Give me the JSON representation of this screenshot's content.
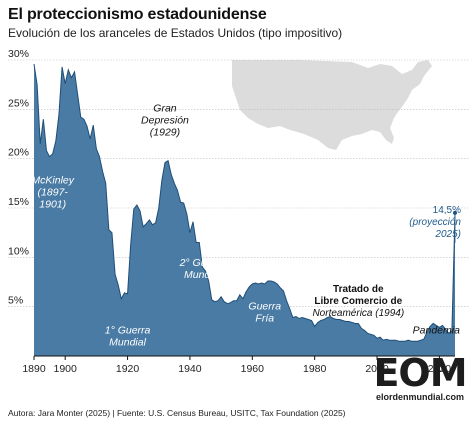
{
  "header": {
    "title": "El proteccionismo estadounidense",
    "subtitle": "Evolución de los aranceles de Estados Unidos (tipo impositivo)"
  },
  "footer": {
    "source": "Autora: Jara Monter (2025) | Fuente: U.S. Census Bureau, USITC, Tax Foundation (2025)"
  },
  "logo": {
    "mark": "EOM",
    "text": "elordenmundial.com"
  },
  "colors": {
    "area_fill": "#4a7ba4",
    "area_line": "#1f4f78",
    "map_fill": "#dcdcdc",
    "gridline": "#bdbdbd",
    "text": "#222222"
  },
  "chart_data": {
    "type": "area",
    "title": "El proteccionismo estadounidense",
    "subtitle": "Evolución de los aranceles de Estados Unidos (tipo impositivo)",
    "xlim": [
      1890,
      2025
    ],
    "ylim": [
      0,
      30
    ],
    "x_ticks": [
      1890,
      1900,
      1920,
      1940,
      1960,
      1980,
      2000,
      2020
    ],
    "y_ticks": [
      {
        "value": 5,
        "label": "5%"
      },
      {
        "value": 10,
        "label": "10%"
      },
      {
        "value": 15,
        "label": "15%"
      },
      {
        "value": 20,
        "label": "20%"
      },
      {
        "value": 25,
        "label": "25%"
      },
      {
        "value": 30,
        "label": "30%"
      }
    ],
    "grid": true,
    "series": [
      {
        "x": [
          1890,
          1891,
          1892,
          1893,
          1894,
          1895,
          1896,
          1897,
          1898,
          1899,
          1900,
          1901,
          1902,
          1903,
          1904,
          1905,
          1906,
          1907,
          1908,
          1909,
          1910,
          1911,
          1912,
          1913,
          1914,
          1915,
          1916,
          1917,
          1918,
          1919,
          1920,
          1921,
          1922,
          1923,
          1924,
          1925,
          1926,
          1927,
          1928,
          1929,
          1930,
          1931,
          1932,
          1933,
          1934,
          1935,
          1936,
          1937,
          1938,
          1939,
          1940,
          1941,
          1942,
          1943,
          1944,
          1945,
          1946,
          1947,
          1948,
          1949,
          1950,
          1951,
          1952,
          1953,
          1954,
          1955,
          1956,
          1957,
          1958,
          1959,
          1960,
          1961,
          1962,
          1963,
          1964,
          1965,
          1966,
          1967,
          1968,
          1969,
          1970,
          1971,
          1972,
          1973,
          1974,
          1975,
          1976,
          1977,
          1978,
          1979,
          1980,
          1981,
          1982,
          1983,
          1984,
          1985,
          1986,
          1987,
          1988,
          1989,
          1990,
          1991,
          1992,
          1993,
          1994,
          1995,
          1996,
          1997,
          1998,
          1999,
          2000,
          2001,
          2002,
          2003,
          2004,
          2005,
          2006,
          2007,
          2008,
          2009,
          2010,
          2011,
          2012,
          2013,
          2014,
          2015,
          2016,
          2017,
          2018,
          2019,
          2020,
          2021,
          2022,
          2023,
          2024,
          2025
        ],
        "values": [
          29.6,
          27.5,
          21.5,
          24.0,
          20.8,
          20.2,
          20.5,
          21.8,
          24.5,
          29.3,
          27.6,
          29.0,
          28.2,
          28.8,
          26.5,
          24.2,
          24.0,
          23.3,
          22.0,
          23.4,
          21.0,
          20.2,
          18.7,
          17.5,
          12.8,
          12.5,
          8.3,
          7.2,
          5.8,
          6.4,
          6.3,
          11.3,
          14.9,
          15.3,
          14.7,
          13.1,
          13.4,
          13.8,
          13.3,
          13.5,
          15.0,
          17.8,
          19.6,
          19.8,
          18.4,
          17.5,
          16.8,
          15.6,
          15.5,
          14.4,
          12.5,
          13.6,
          11.5,
          11.5,
          9.0,
          8.6,
          7.6,
          5.7,
          5.5,
          5.6,
          6.0,
          5.5,
          5.3,
          5.4,
          5.6,
          5.6,
          6.2,
          5.8,
          6.5,
          7.0,
          7.3,
          7.4,
          7.3,
          7.4,
          7.3,
          7.6,
          7.6,
          7.5,
          7.3,
          6.9,
          6.6,
          5.6,
          4.8,
          3.9,
          4.0,
          3.8,
          3.9,
          3.8,
          3.7,
          3.6,
          3.0,
          3.4,
          3.6,
          3.7,
          3.9,
          4.0,
          3.8,
          3.7,
          3.7,
          3.6,
          3.5,
          3.5,
          3.4,
          3.3,
          3.3,
          2.8,
          2.6,
          2.3,
          2.2,
          2.1,
          1.8,
          1.9,
          1.6,
          1.7,
          1.6,
          1.6,
          1.6,
          1.5,
          1.5,
          1.5,
          1.6,
          1.5,
          1.5,
          1.5,
          1.6,
          1.7,
          2.4,
          3.0,
          3.3,
          3.1,
          2.9,
          3.1,
          2.7,
          2.3,
          2.5,
          14.5
        ]
      }
    ],
    "annotations": [
      {
        "id": "mckinley",
        "lines": [
          "McKinley",
          "(1897-",
          "1901)"
        ],
        "x": 1896,
        "y": 17.5,
        "style": "italic-white"
      },
      {
        "id": "ww1",
        "lines": [
          "1° Guerra",
          "Mundial"
        ],
        "x": 1920,
        "y": 2.3,
        "style": "italic-white"
      },
      {
        "id": "depression",
        "lines": [
          "Gran",
          "Depresión",
          "(1929)"
        ],
        "x": 1932,
        "y": 24.8,
        "style": "italic-dark"
      },
      {
        "id": "ww2",
        "lines": [
          "2° Guerra",
          "Mundial"
        ],
        "x": 1944,
        "y": 9.1,
        "style": "italic-white"
      },
      {
        "id": "coldwar",
        "lines": [
          "Guerra",
          "Fría"
        ],
        "x": 1964,
        "y": 4.7,
        "style": "italic-white"
      },
      {
        "id": "nafta",
        "lines": [
          "Tratado de",
          "Libre Comercio de",
          "Norteamérica (1994)"
        ],
        "x": 1994,
        "y": 6.5,
        "style": "mixed-dark"
      },
      {
        "id": "pandemic",
        "lines": [
          "Pandemia"
        ],
        "x": 2019,
        "y": 2.3,
        "style": "italic-dark"
      },
      {
        "id": "projection",
        "lines": [
          "14,5%",
          "(proyección",
          "2025)"
        ],
        "x": 2025,
        "y": 14.5,
        "style": "projection"
      }
    ]
  }
}
